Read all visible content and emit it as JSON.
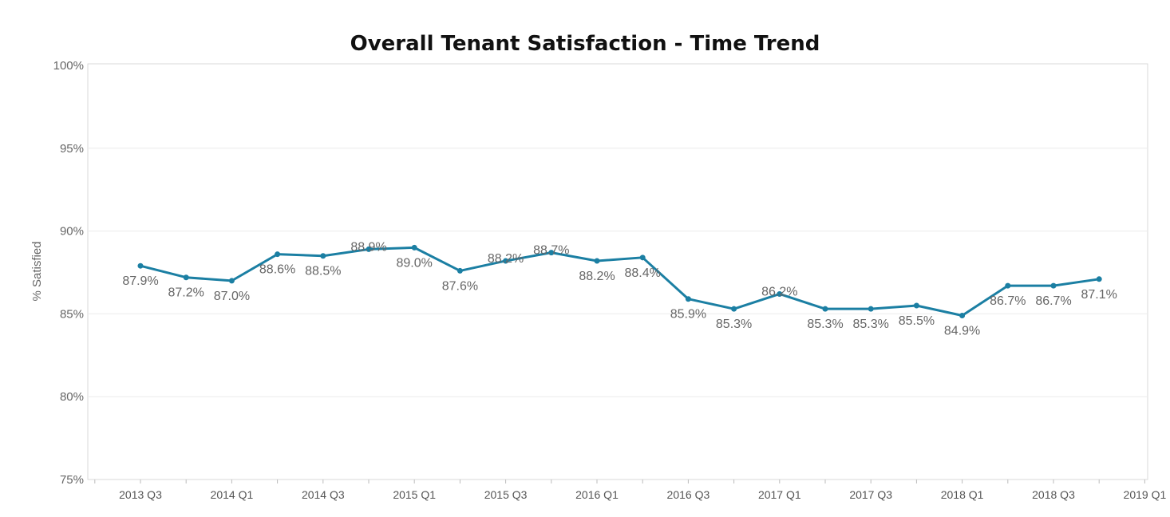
{
  "chart_data": {
    "type": "line",
    "title": "Overall Tenant Satisfaction - Time Trend",
    "xlabel": "",
    "ylabel": "% Satisfied",
    "ylim": [
      75,
      100
    ],
    "y_ticks": [
      "75%",
      "80%",
      "85%",
      "90%",
      "95%",
      "100%"
    ],
    "y_tick_values": [
      75,
      80,
      85,
      90,
      95,
      100
    ],
    "x_tick_labels": [
      "2013 Q3",
      "2014 Q1",
      "2014 Q3",
      "2015 Q1",
      "2015 Q3",
      "2016 Q1",
      "2016 Q3",
      "2017 Q1",
      "2017 Q3",
      "2018 Q1",
      "2018 Q3",
      "2019 Q1"
    ],
    "categories": [
      "2013 Q3",
      "2013 Q4",
      "2014 Q1",
      "2014 Q2",
      "2014 Q3",
      "2014 Q4",
      "2015 Q1",
      "2015 Q2",
      "2015 Q3",
      "2015 Q4",
      "2016 Q1",
      "2016 Q2",
      "2016 Q3",
      "2016 Q4",
      "2017 Q1",
      "2017 Q2",
      "2017 Q3",
      "2017 Q4",
      "2018 Q1",
      "2018 Q2",
      "2018 Q3",
      "2018 Q4"
    ],
    "values": [
      87.9,
      87.2,
      87.0,
      88.6,
      88.5,
      88.9,
      89.0,
      87.6,
      88.2,
      88.7,
      88.2,
      88.4,
      85.9,
      85.3,
      86.2,
      85.3,
      85.3,
      85.5,
      84.9,
      86.7,
      86.7,
      87.1
    ],
    "data_labels": [
      "87.9%",
      "87.2%",
      "87.0%",
      "88.6%",
      "88.5%",
      "88.9%",
      "89.0%",
      "87.6%",
      "88.2%",
      "88.7%",
      "88.2%",
      "88.4%",
      "85.9%",
      "85.3%",
      "86.2%",
      "85.3%",
      "85.3%",
      "85.5%",
      "84.9%",
      "86.7%",
      "86.7%",
      "87.1%"
    ],
    "label_position": [
      "below",
      "below",
      "below",
      "below",
      "below",
      "above",
      "below",
      "below",
      "above",
      "above",
      "below",
      "below",
      "below",
      "below",
      "above",
      "below",
      "below",
      "below",
      "below",
      "below",
      "below",
      "below"
    ],
    "grid": true,
    "line_color": "#1b7fa3"
  }
}
